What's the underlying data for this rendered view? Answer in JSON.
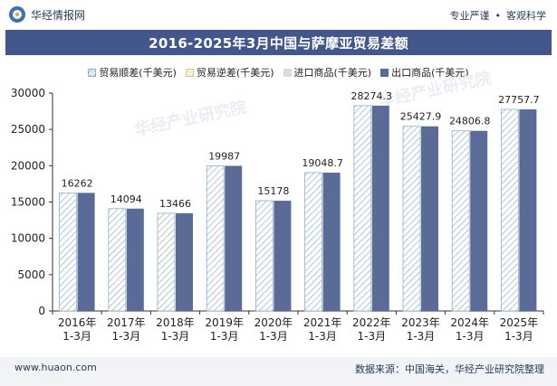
{
  "header": {
    "brand": "华经情报网",
    "tags": [
      "专业严谨",
      "客观科学"
    ]
  },
  "footer": {
    "url": "www.huaon.com",
    "source": "数据来源：中国海关，华经产业研究院整理"
  },
  "colors": {
    "title_bg": "#43578a",
    "export": "#5b6b98",
    "import": "#d6dbe7",
    "surplus": "#8fb0c8",
    "deficit": "#e2c98c"
  },
  "chart_data": {
    "type": "bar",
    "title": "2016-2025年3月中国与萨摩亚贸易差额",
    "categories": [
      "2016年\n1-3月",
      "2017年\n1-3月",
      "2018年\n1-3月",
      "2019年\n1-3月",
      "2020年\n1-3月",
      "2021年\n1-3月",
      "2022年\n1-3月",
      "2023年\n1-3月",
      "2024年\n1-3月",
      "2025年\n1-3月"
    ],
    "series": [
      {
        "name": "贸易顺差(千美元)",
        "values": [
          16262,
          14094,
          13466,
          19987,
          15178,
          19048.7,
          28274.3,
          25427.9,
          24806.8,
          27757.7
        ]
      },
      {
        "name": "贸易逆差(千美元)",
        "values": [
          0,
          0,
          0,
          0,
          0,
          0,
          0,
          0,
          0,
          0
        ]
      },
      {
        "name": "进口商品(千美元)",
        "values": [
          0,
          0,
          0,
          0,
          0,
          0,
          0,
          0,
          0,
          0
        ]
      },
      {
        "name": "出口商品(千美元)",
        "values": [
          16262,
          14094,
          13466,
          19987,
          15178,
          19048.7,
          28274.3,
          25427.9,
          24806.8,
          27757.7
        ]
      }
    ],
    "data_labels": [
      "16262",
      "14094",
      "13466",
      "19987",
      "15178",
      "19048.7",
      "28274.3",
      "25427.9",
      "24806.8",
      "27757.7"
    ],
    "yticks": [
      0,
      5000,
      10000,
      15000,
      20000,
      25000,
      30000
    ],
    "ylim": [
      0,
      30000
    ],
    "legend_position": "top",
    "grid": false
  }
}
